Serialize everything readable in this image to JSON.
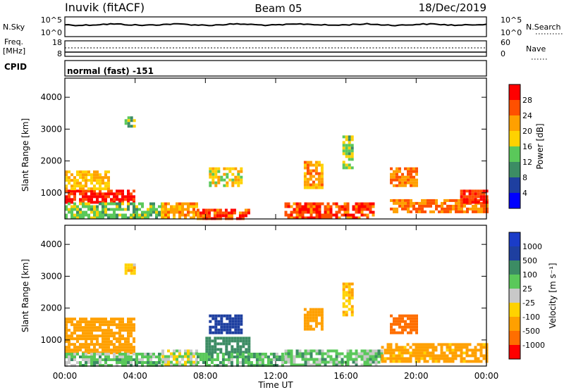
{
  "header": {
    "radar": "Inuvik (fitACF)",
    "beam": "Beam 05",
    "date": "18/Dec/2019"
  },
  "noise_panel": {
    "left_label": "N.Sky",
    "right_label": "N.Search",
    "left_ticks": [
      "10^5",
      "10^0"
    ],
    "right_ticks": [
      "10^5",
      "10^0"
    ]
  },
  "freq_panel": {
    "left_label": "Freq.",
    "left_unit": "[MHz]",
    "right_label": "Nave",
    "left_ticks": [
      "18",
      "8"
    ],
    "right_ticks": [
      "60",
      "0"
    ]
  },
  "cpid": {
    "label": "CPID",
    "value": "normal (fast) -151"
  },
  "colors": {
    "power": [
      "#0000ff",
      "#1e3fa0",
      "#3c8c64",
      "#5ac85a",
      "#ffd200",
      "#ffa000",
      "#ff5000",
      "#ff0000"
    ],
    "velocity": [
      "#ff0000",
      "#ff6e00",
      "#ffa000",
      "#ffd200",
      "#c8c8c8",
      "#5ac85a",
      "#3c8c64",
      "#1e3fa0",
      "#1a3cc8"
    ]
  },
  "chart_data": [
    {
      "type": "heatmap",
      "name": "power",
      "ylabel": "Slant Range [km]",
      "y_ticks": [
        1000,
        2000,
        3000,
        4000
      ],
      "ylim": [
        180,
        4600
      ],
      "x_ticks": [
        "00:00",
        "04:00",
        "08:00",
        "12:00",
        "16:00",
        "20:00",
        "00:00"
      ],
      "xlim_hours": [
        0,
        24
      ],
      "colorbar_label": "Power [dB]",
      "colorbar_ticks": [
        4,
        8,
        12,
        16,
        20,
        24,
        28
      ],
      "colorbar_range": [
        0,
        32
      ],
      "regions": [
        {
          "t": [
            0.0,
            4.0
          ],
          "r": [
            700,
            1100
          ],
          "v": 29
        },
        {
          "t": [
            0.0,
            2.5
          ],
          "r": [
            1100,
            1700
          ],
          "v": 20
        },
        {
          "t": [
            0.0,
            5.5
          ],
          "r": [
            200,
            700
          ],
          "v": 14
        },
        {
          "t": [
            5.5,
            7.5
          ],
          "r": [
            200,
            700
          ],
          "v": 22
        },
        {
          "t": [
            7.5,
            10.5
          ],
          "r": [
            200,
            500
          ],
          "v": 27
        },
        {
          "t": [
            8.2,
            10.0
          ],
          "r": [
            1200,
            1800
          ],
          "v": 18
        },
        {
          "t": [
            12.5,
            17.5
          ],
          "r": [
            200,
            700
          ],
          "v": 27
        },
        {
          "t": [
            13.6,
            14.6
          ],
          "r": [
            1200,
            2000
          ],
          "v": 22
        },
        {
          "t": [
            15.8,
            16.4
          ],
          "r": [
            1800,
            2800
          ],
          "v": 14
        },
        {
          "t": [
            18.5,
            20.0
          ],
          "r": [
            1200,
            1800
          ],
          "v": 24
        },
        {
          "t": [
            18.5,
            24.0
          ],
          "r": [
            400,
            800
          ],
          "v": 24
        },
        {
          "t": [
            3.4,
            3.9
          ],
          "r": [
            3100,
            3400
          ],
          "v": 14
        },
        {
          "t": [
            22.5,
            24.0
          ],
          "r": [
            700,
            1100
          ],
          "v": 28
        }
      ]
    },
    {
      "type": "heatmap",
      "name": "velocity",
      "ylabel": "Slant Range [km]",
      "xlabel": "Time UT",
      "y_ticks": [
        1000,
        2000,
        3000,
        4000
      ],
      "ylim": [
        180,
        4600
      ],
      "x_ticks": [
        "00:00",
        "04:00",
        "08:00",
        "12:00",
        "16:00",
        "20:00",
        "00:00"
      ],
      "xlim_hours": [
        0,
        24
      ],
      "colorbar_label": "Velocity [m s⁻¹]",
      "colorbar_ticks": [
        "1000",
        "500",
        "100",
        "25",
        "-25",
        "-100",
        "-500",
        "-1000"
      ],
      "regions": [
        {
          "t": [
            0.0,
            4.0
          ],
          "r": [
            600,
            1700
          ],
          "v": -300
        },
        {
          "t": [
            0.0,
            5.5
          ],
          "r": [
            200,
            600
          ],
          "v": 60
        },
        {
          "t": [
            5.5,
            7.5
          ],
          "r": [
            200,
            700
          ],
          "v": 0
        },
        {
          "t": [
            8.2,
            10.0
          ],
          "r": [
            1200,
            1800
          ],
          "v": 800
        },
        {
          "t": [
            8.0,
            10.5
          ],
          "r": [
            600,
            1100
          ],
          "v": 300
        },
        {
          "t": [
            7.5,
            12.5
          ],
          "r": [
            200,
            600
          ],
          "v": 80
        },
        {
          "t": [
            12.5,
            18.0
          ],
          "r": [
            200,
            700
          ],
          "v": 60
        },
        {
          "t": [
            13.6,
            14.6
          ],
          "r": [
            1300,
            2000
          ],
          "v": -200
        },
        {
          "t": [
            15.8,
            16.4
          ],
          "r": [
            1800,
            2800
          ],
          "v": -100
        },
        {
          "t": [
            18.5,
            20.0
          ],
          "r": [
            1200,
            1800
          ],
          "v": -700
        },
        {
          "t": [
            18.0,
            24.0
          ],
          "r": [
            300,
            900
          ],
          "v": -150
        },
        {
          "t": [
            3.4,
            3.9
          ],
          "r": [
            3100,
            3400
          ],
          "v": -80
        }
      ]
    }
  ]
}
